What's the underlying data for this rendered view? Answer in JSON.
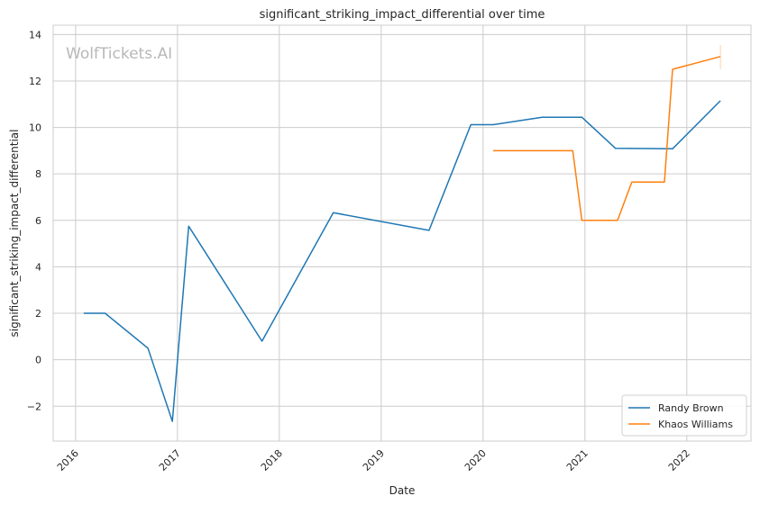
{
  "chart_data": {
    "type": "line",
    "title": "significant_striking_impact_differential over time",
    "xlabel": "Date",
    "ylabel": "significant_striking_impact_differential",
    "watermark": "WolfTickets.AI",
    "xlim": [
      2015.78,
      2022.63
    ],
    "ylim": [
      -3.5,
      14.4
    ],
    "x_ticks": [
      2016,
      2017,
      2018,
      2019,
      2020,
      2021,
      2022
    ],
    "x_tick_labels": [
      "2016",
      "2017",
      "2018",
      "2019",
      "2020",
      "2021",
      "2022"
    ],
    "y_ticks": [
      -2,
      0,
      2,
      4,
      6,
      8,
      10,
      12,
      14
    ],
    "y_tick_labels": [
      "−2",
      "0",
      "2",
      "4",
      "6",
      "8",
      "10",
      "12",
      "14"
    ],
    "grid": true,
    "legend_position": "bottom-right",
    "series": [
      {
        "name": "Randy Brown",
        "color": "#1f77b4",
        "x": [
          2016.08,
          2016.29,
          2016.71,
          2016.95,
          2017.11,
          2017.83,
          2018.53,
          2019.47,
          2019.88,
          2020.1,
          2020.58,
          2020.97,
          2021.3,
          2021.86,
          2022.33
        ],
        "y": [
          2.0,
          2.0,
          0.5,
          -2.65,
          5.75,
          0.8,
          6.33,
          5.57,
          10.12,
          10.12,
          10.44,
          10.44,
          9.1,
          9.08,
          11.15
        ]
      },
      {
        "name": "Khaos Williams",
        "color": "#ff7f0e",
        "x": [
          2020.1,
          2020.88,
          2020.97,
          2021.32,
          2021.46,
          2021.78,
          2021.86,
          2022.33
        ],
        "y": [
          9.0,
          9.0,
          6.0,
          6.0,
          7.65,
          7.65,
          12.5,
          13.05
        ]
      }
    ],
    "error_bar": {
      "series": "Khaos Williams",
      "x": 2022.33,
      "y_low": 12.5,
      "y_high": 13.55
    }
  }
}
